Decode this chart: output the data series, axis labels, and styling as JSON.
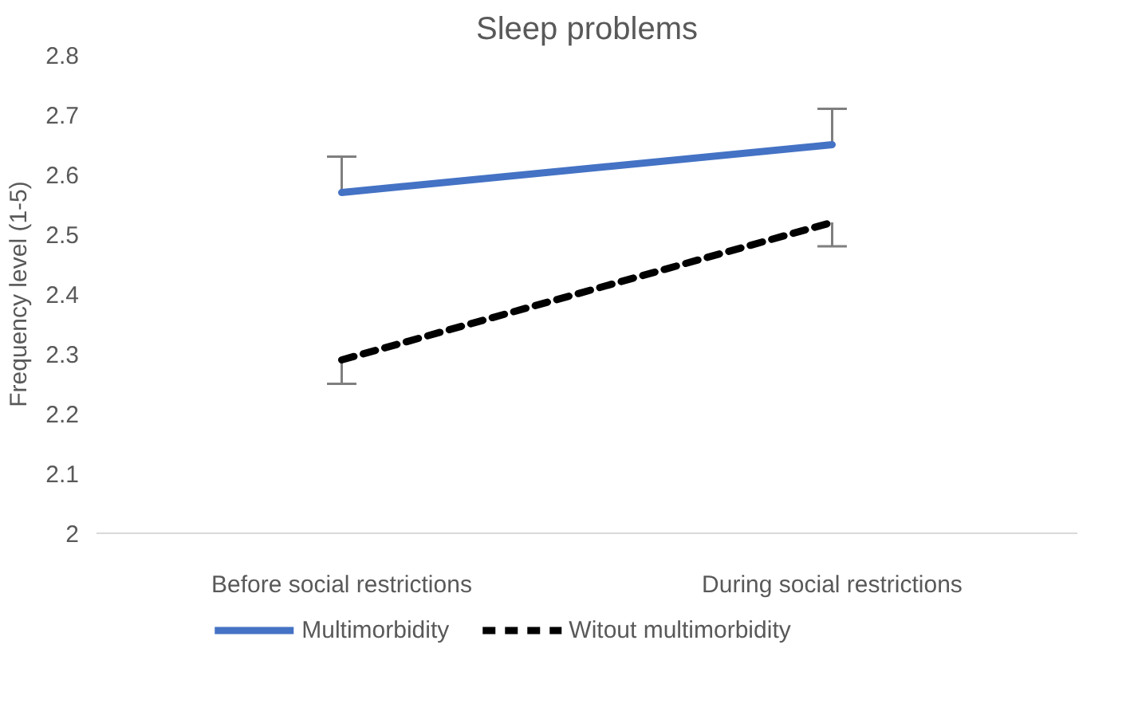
{
  "chart_data": {
    "type": "line",
    "title": "Sleep problems",
    "ylabel": "Frequency level (1-5)",
    "categories": [
      "Before social restrictions",
      "During social restrictions"
    ],
    "series": [
      {
        "name": "Multimorbidity",
        "color": "#4472c4",
        "values": [
          2.57,
          2.65
        ],
        "errors": [
          [
            2.57,
            2.63
          ],
          [
            2.65,
            2.71
          ]
        ],
        "line_style": "solid"
      },
      {
        "name": "Witout multimorbidity",
        "color": "#000000",
        "values": [
          2.29,
          2.52
        ],
        "errors": [
          [
            2.25,
            2.29
          ],
          [
            2.48,
            2.52
          ]
        ],
        "line_style": "dashed"
      }
    ],
    "ylim": [
      2,
      2.8
    ],
    "yticks": [
      2,
      2.1,
      2.2,
      2.3,
      2.4,
      2.5,
      2.6,
      2.7,
      2.8
    ],
    "grid": false,
    "legend": "bottom",
    "marker": "none"
  }
}
